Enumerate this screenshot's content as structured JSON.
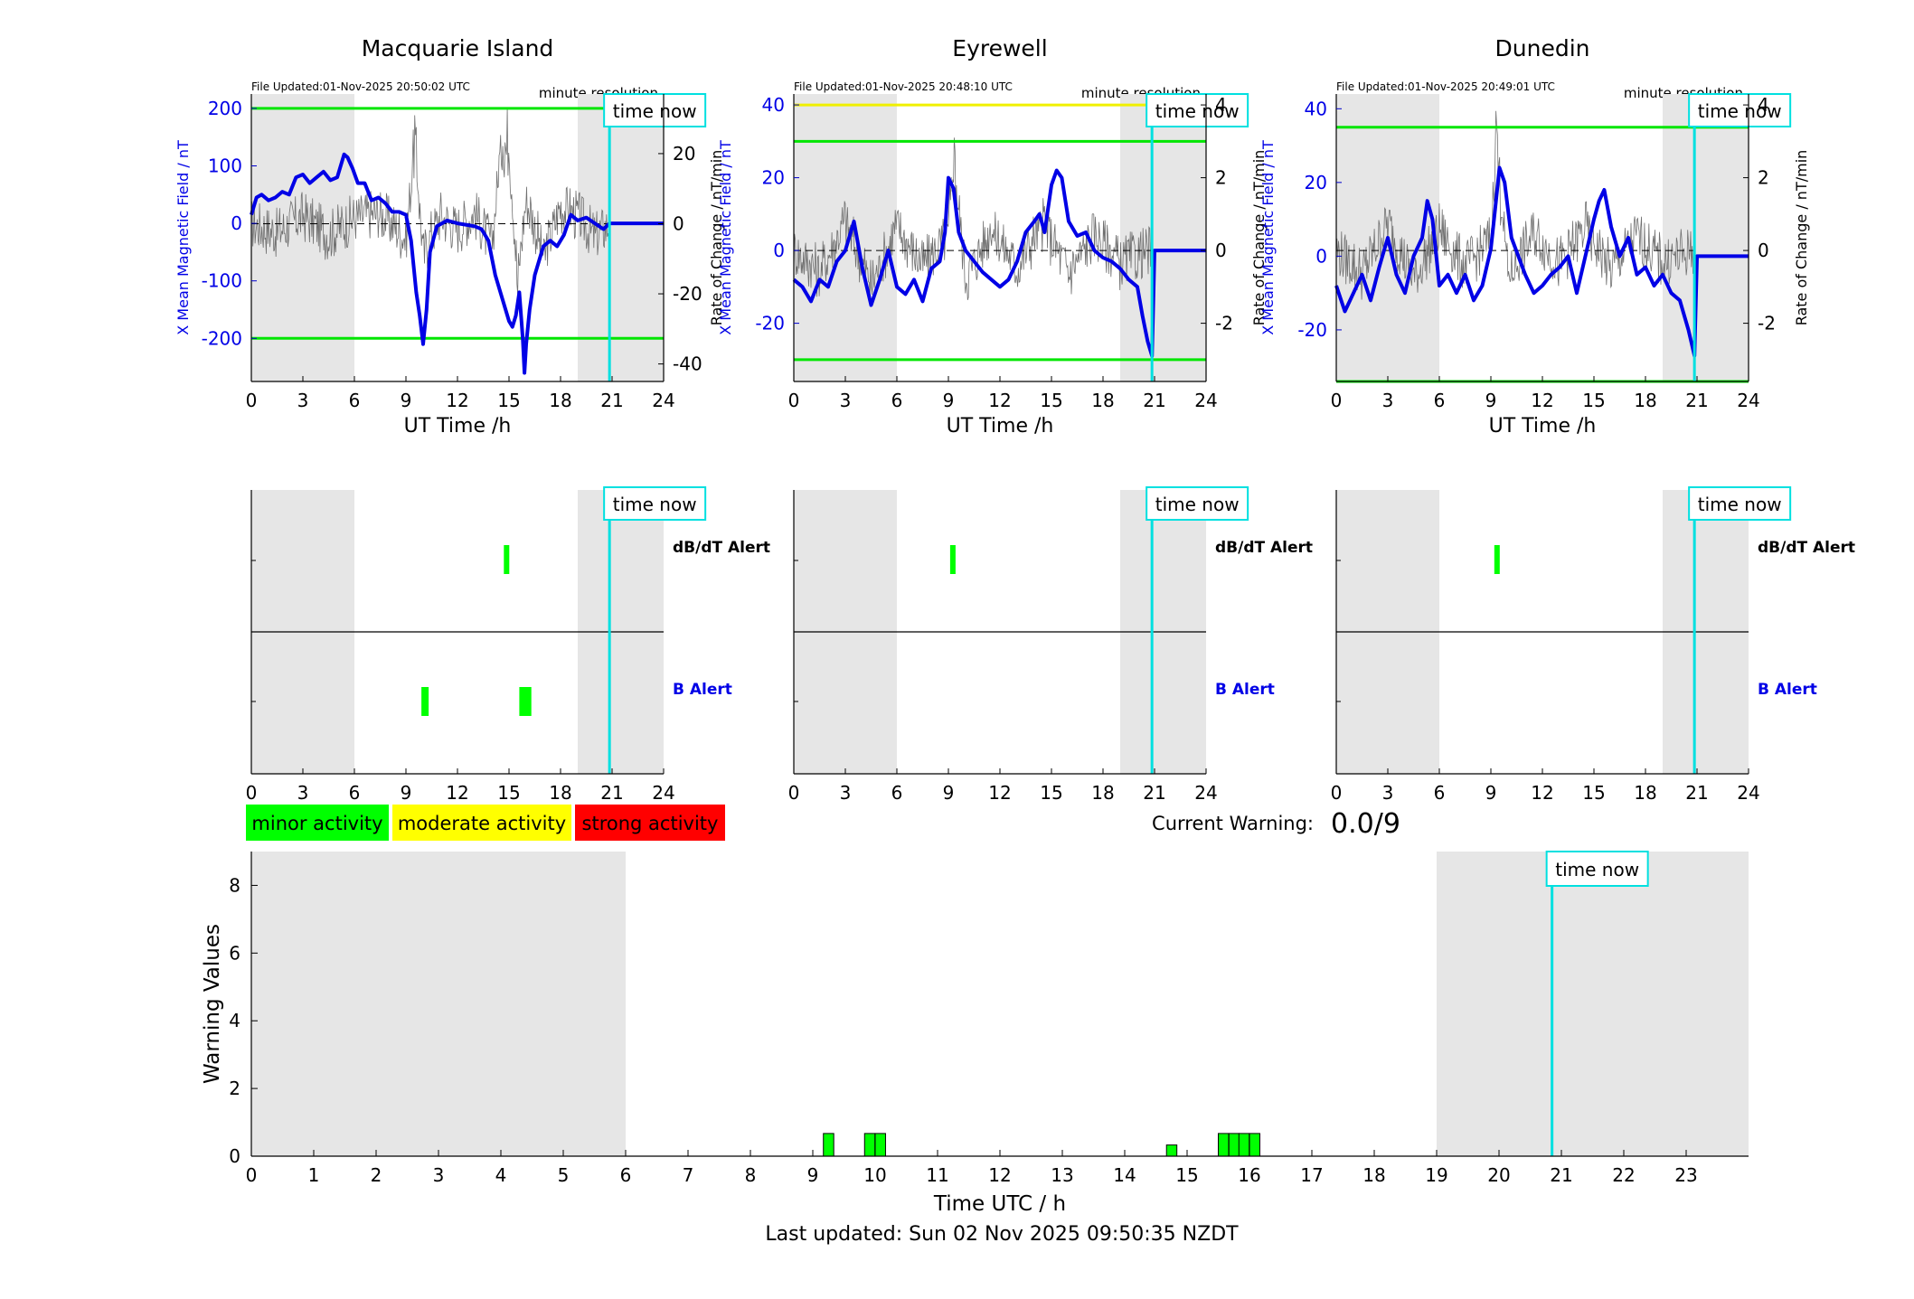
{
  "footer": {
    "last_updated": "Last updated: Sun 02 Nov 2025 09:50:35 NZDT"
  },
  "time_now_label": "time now",
  "colors": {
    "shade": "#e6e6e6",
    "field_line": "#0000e6",
    "rate_line": "#707070",
    "threshold_green": "#00e600",
    "threshold_yellow": "#f0f000",
    "time_now": "#00e0e0",
    "minor": "#00ff00",
    "moderate": "#ffff00",
    "strong": "#ff0000"
  },
  "shaded_ut_hours": [
    [
      0,
      6
    ],
    [
      19,
      24
    ]
  ],
  "time_now_hour": 20.85,
  "legend": {
    "minor": "minor activity",
    "moderate": "moderate activity",
    "strong": "strong activity"
  },
  "current_warning": {
    "label": "Current Warning:",
    "value": "0.0/9"
  },
  "stations": [
    {
      "name": "Macquarie Island",
      "file_updated": "File Updated:01-Nov-2025 20:50:02 UTC",
      "resolution": "minute resolution",
      "chart_data": {
        "type": "line",
        "xlabel": "UT Time /h",
        "ylabel_left": "X Mean Magnetic Field / nT",
        "ylabel_right": "Rate of Change / nT/min",
        "xlim": [
          0,
          24
        ],
        "xticks": [
          0,
          3,
          6,
          9,
          12,
          15,
          18,
          21,
          24
        ],
        "ylim_left": [
          -275,
          225
        ],
        "yticks_left": [
          -200,
          -100,
          0,
          100,
          200
        ],
        "ylim_right": [
          -45,
          37
        ],
        "yticks_right": [
          -40,
          -20,
          0,
          20
        ],
        "thresholds": [
          {
            "value": 200,
            "color": "#00e600"
          },
          {
            "value": -200,
            "color": "#00e600"
          }
        ],
        "series": [
          {
            "axis": "left",
            "x": [
              0,
              0.3,
              0.6,
              1.0,
              1.4,
              1.8,
              2.2,
              2.6,
              3.0,
              3.4,
              3.8,
              4.2,
              4.6,
              5.0,
              5.4,
              5.6,
              5.9,
              6.2,
              6.6,
              7.0,
              7.4,
              7.8,
              8.2,
              8.6,
              9.0,
              9.3,
              9.6,
              9.8,
              10.0,
              10.2,
              10.4,
              10.8,
              11.4,
              12.0,
              12.6,
              13.0,
              13.4,
              13.8,
              14.2,
              14.5,
              14.8,
              15.0,
              15.2,
              15.4,
              15.6,
              15.8,
              15.9,
              16.0,
              16.2,
              16.5,
              17.0,
              17.4,
              17.8,
              18.2,
              18.6,
              19.0,
              19.5,
              20.0,
              20.5,
              20.85,
              21.5,
              22.5,
              24.0
            ],
            "values": [
              15,
              45,
              50,
              40,
              45,
              55,
              50,
              80,
              85,
              70,
              80,
              90,
              75,
              80,
              120,
              115,
              95,
              70,
              70,
              40,
              45,
              35,
              20,
              20,
              15,
              -30,
              -120,
              -160,
              -210,
              -150,
              -50,
              -5,
              5,
              0,
              -3,
              -5,
              -10,
              -30,
              -90,
              -120,
              -150,
              -170,
              -180,
              -160,
              -120,
              -200,
              -260,
              -210,
              -150,
              -90,
              -40,
              -30,
              -40,
              -20,
              15,
              5,
              10,
              0,
              -10,
              0,
              0,
              0,
              0
            ]
          },
          {
            "axis": "right",
            "x": [
              0,
              1.5,
              3,
              4.5,
              6,
              7.5,
              9,
              9.5,
              10,
              11,
              12,
              13,
              14,
              14.5,
              15,
              15.5,
              16,
              17,
              18,
              19,
              20,
              20.85,
              24
            ],
            "values": [
              0,
              -3,
              3,
              -4,
              2,
              4,
              -5,
              30,
              -10,
              3,
              -2,
              4,
              -8,
              25,
              30,
              -20,
              10,
              -12,
              6,
              3,
              -5,
              0,
              0
            ]
          }
        ],
        "alerts": {
          "dbdt_label": "dB/dT Alert",
          "b_label": "B Alert",
          "dbdt": [
            [
              14.7,
              15.0
            ]
          ],
          "b": [
            [
              9.9,
              10.3
            ],
            [
              15.6,
              16.3
            ]
          ]
        }
      }
    },
    {
      "name": "Eyrewell",
      "file_updated": "File Updated:01-Nov-2025 20:48:10 UTC",
      "resolution": "minute resolution",
      "chart_data": {
        "type": "line",
        "xlabel": "UT Time /h",
        "ylabel_left": "X Mean Magnetic Field / nT",
        "ylabel_right": "Rate of Change / nT/min",
        "xlim": [
          0,
          24
        ],
        "xticks": [
          0,
          3,
          6,
          9,
          12,
          15,
          18,
          21,
          24
        ],
        "ylim_left": [
          -36,
          43
        ],
        "yticks_left": [
          -20,
          0,
          20,
          40
        ],
        "ylim_right": [
          -3.6,
          4.3
        ],
        "yticks_right": [
          -2,
          0,
          2,
          4
        ],
        "thresholds": [
          {
            "value": 40,
            "color": "#f0f000"
          },
          {
            "value": 30,
            "color": "#00e600"
          },
          {
            "value": -30,
            "color": "#00e600"
          }
        ],
        "series": [
          {
            "axis": "left",
            "x": [
              0,
              0.5,
              1.0,
              1.5,
              2.0,
              2.5,
              3.0,
              3.5,
              4.0,
              4.5,
              5.0,
              5.5,
              6.0,
              6.5,
              7.0,
              7.5,
              8.0,
              8.5,
              8.8,
              9.0,
              9.3,
              9.6,
              10.0,
              10.5,
              11.0,
              11.5,
              12.0,
              12.5,
              13.0,
              13.5,
              14.0,
              14.3,
              14.6,
              15.0,
              15.3,
              15.6,
              16.0,
              16.5,
              17.0,
              17.5,
              18.0,
              18.5,
              19.0,
              19.5,
              20.0,
              20.3,
              20.6,
              20.85,
              21.0,
              22.0,
              24.0
            ],
            "values": [
              -8,
              -10,
              -14,
              -8,
              -10,
              -3,
              0,
              8,
              -5,
              -15,
              -8,
              0,
              -10,
              -12,
              -8,
              -14,
              -5,
              -3,
              5,
              20,
              17,
              5,
              0,
              -3,
              -6,
              -8,
              -10,
              -8,
              -3,
              5,
              8,
              10,
              5,
              18,
              22,
              20,
              8,
              4,
              5,
              0,
              -2,
              -3,
              -5,
              -8,
              -10,
              -18,
              -25,
              -29,
              0,
              0,
              0
            ]
          },
          {
            "axis": "right",
            "x": [
              0,
              1.5,
              3,
              4.5,
              6,
              7.5,
              9,
              9.3,
              10,
              11.5,
              13,
              14.5,
              16,
              17.5,
              19,
              20.85,
              24
            ],
            "values": [
              0,
              -0.8,
              1.0,
              -1.2,
              0.8,
              -0.5,
              0.5,
              3.4,
              -1.0,
              0.8,
              -0.6,
              1.0,
              -0.8,
              0.6,
              -0.4,
              0,
              0
            ]
          }
        ],
        "alerts": {
          "dbdt_label": "dB/dT Alert",
          "b_label": "B Alert",
          "dbdt": [
            [
              9.1,
              9.4
            ]
          ],
          "b": []
        }
      }
    },
    {
      "name": "Dunedin",
      "file_updated": "File Updated:01-Nov-2025 20:49:01 UTC",
      "resolution": "minute resolution",
      "chart_data": {
        "type": "line",
        "xlabel": "UT Time /h",
        "ylabel_left": "X Mean Magnetic Field / nT",
        "ylabel_right": "Rate of Change / nT/min",
        "xlim": [
          0,
          24
        ],
        "xticks": [
          0,
          3,
          6,
          9,
          12,
          15,
          18,
          21,
          24
        ],
        "ylim_left": [
          -34,
          44
        ],
        "yticks_left": [
          -20,
          0,
          20,
          40
        ],
        "ylim_right": [
          -3.6,
          4.3
        ],
        "yticks_right": [
          -2,
          0,
          2,
          4
        ],
        "thresholds": [
          {
            "value": 35,
            "color": "#00e600"
          },
          {
            "value": -34,
            "color": "#00e600"
          }
        ],
        "series": [
          {
            "axis": "left",
            "x": [
              0,
              0.5,
              1.0,
              1.5,
              2.0,
              2.5,
              3.0,
              3.5,
              4.0,
              4.5,
              5.0,
              5.3,
              5.6,
              6.0,
              6.5,
              7.0,
              7.5,
              8.0,
              8.5,
              9.0,
              9.3,
              9.5,
              9.8,
              10.2,
              10.6,
              11.0,
              11.5,
              12.0,
              12.5,
              13.0,
              13.5,
              14.0,
              14.5,
              15.0,
              15.3,
              15.6,
              16.0,
              16.5,
              17.0,
              17.5,
              18.0,
              18.5,
              19.0,
              19.5,
              20.0,
              20.5,
              20.85,
              21.0,
              22.0,
              24.0
            ],
            "values": [
              -8,
              -15,
              -10,
              -5,
              -12,
              -3,
              5,
              -5,
              -10,
              0,
              5,
              15,
              10,
              -8,
              -5,
              -10,
              -5,
              -12,
              -8,
              2,
              15,
              24,
              20,
              5,
              0,
              -5,
              -10,
              -8,
              -5,
              -3,
              0,
              -10,
              0,
              10,
              15,
              18,
              8,
              0,
              5,
              -5,
              -3,
              -8,
              -5,
              -10,
              -12,
              -20,
              -27,
              0,
              0,
              0
            ]
          },
          {
            "axis": "right",
            "x": [
              0,
              1.5,
              3,
              4.5,
              6,
              7.5,
              9,
              9.3,
              10,
              11.5,
              13,
              14.5,
              16,
              17.5,
              19,
              20.85,
              24
            ],
            "values": [
              0,
              -0.8,
              0.9,
              -1.0,
              0.7,
              -0.6,
              0.4,
              4.0,
              -0.9,
              0.6,
              -0.5,
              0.8,
              -0.7,
              0.5,
              -0.4,
              0,
              0
            ]
          }
        ],
        "alerts": {
          "dbdt_label": "dB/dT Alert",
          "b_label": "B Alert",
          "dbdt": [
            [
              9.2,
              9.5
            ]
          ],
          "b": []
        }
      }
    }
  ],
  "warning_chart": {
    "chart_data": {
      "type": "bar",
      "xlabel": "Time UTC / h",
      "ylabel": "Warning Values",
      "xlim": [
        0,
        24
      ],
      "xticks": [
        0,
        1,
        2,
        3,
        4,
        5,
        6,
        7,
        8,
        9,
        10,
        11,
        12,
        13,
        14,
        15,
        16,
        17,
        18,
        19,
        20,
        21,
        22,
        23
      ],
      "ylim": [
        0,
        9
      ],
      "yticks": [
        0,
        2,
        4,
        6,
        8
      ],
      "bar_width_hours": 0.166,
      "bars": [
        {
          "start": 9.17,
          "value": 0.67
        },
        {
          "start": 9.83,
          "value": 0.67
        },
        {
          "start": 10.0,
          "value": 0.67
        },
        {
          "start": 14.67,
          "value": 0.33
        },
        {
          "start": 15.5,
          "value": 0.67
        },
        {
          "start": 15.67,
          "value": 0.67
        },
        {
          "start": 15.83,
          "value": 0.67
        },
        {
          "start": 16.0,
          "value": 0.67
        }
      ]
    }
  }
}
